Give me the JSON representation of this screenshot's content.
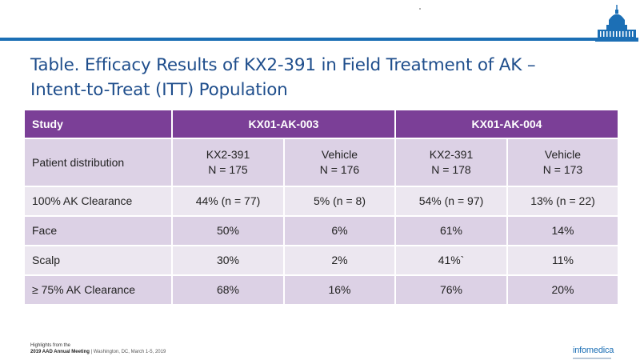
{
  "title": {
    "line1": "Table. Efficacy Results of KX2-391 in Field Treatment of AK –",
    "line2": "Intent-to-Treat (ITT) Population"
  },
  "table": {
    "header": {
      "study": "Study",
      "trial1": "KX01-AK-003",
      "trial2": "KX01-AK-004"
    },
    "distribution": {
      "label": "Patient distribution",
      "cells": [
        {
          "arm": "KX2-391",
          "n": "N = 175"
        },
        {
          "arm": "Vehicle",
          "n": "N = 176"
        },
        {
          "arm": "KX2-391",
          "n": "N = 178"
        },
        {
          "arm": "Vehicle",
          "n": "N = 173"
        }
      ]
    },
    "rows": [
      {
        "label": "100% AK Clearance",
        "values": [
          "44% (n = 77)",
          "5% (n = 8)",
          "54% (n = 97)",
          "13% (n = 22)"
        ]
      },
      {
        "label": "Face",
        "values": [
          "50%",
          "6%",
          "61%",
          "14%"
        ]
      },
      {
        "label": "Scalp",
        "values": [
          "30%",
          "2%",
          "41%`",
          "11%"
        ]
      },
      {
        "label": "≥ 75% AK Clearance",
        "values": [
          "68%",
          "16%",
          "76%",
          "20%"
        ]
      }
    ]
  },
  "footer": {
    "highlights": "Highlights from the",
    "meeting": "2019 AAD Annual Meeting",
    "location": "| Washington, DC, March 1-5, 2019"
  },
  "logo": {
    "brand": "infomedica",
    "icon": "capitol-building-icon"
  },
  "colors": {
    "accent_blue": "#1c6fb5",
    "title_blue": "#1f4e8c",
    "header_purple": "#7b3f97",
    "row_dark": "#dcd1e5",
    "row_light": "#ece7f0"
  }
}
